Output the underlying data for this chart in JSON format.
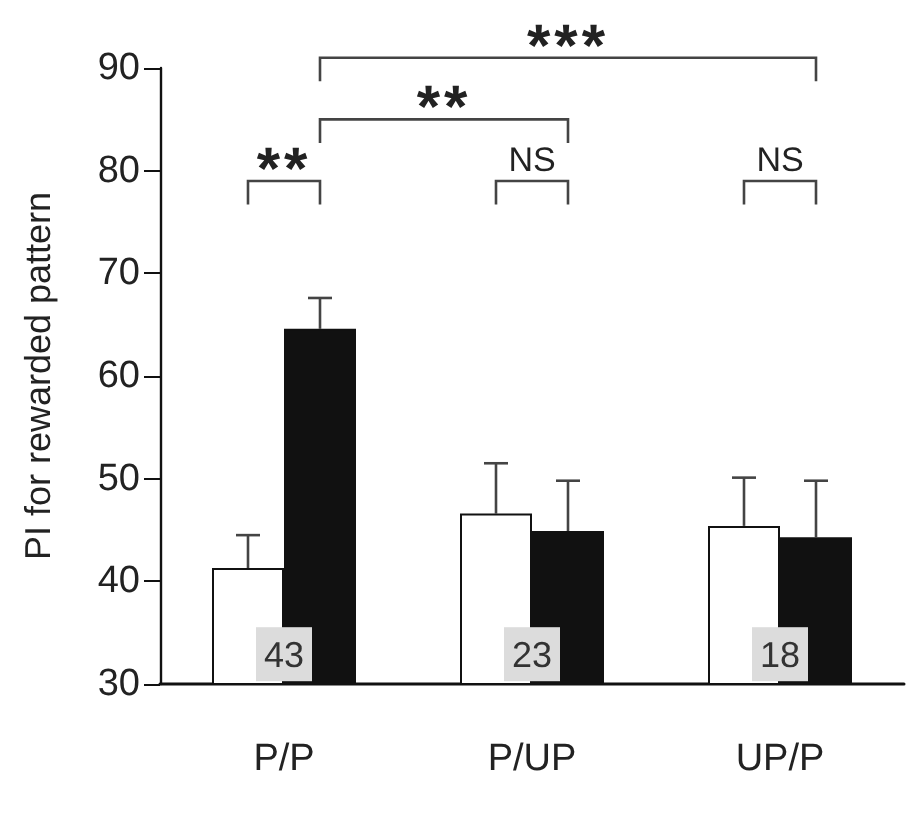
{
  "chart_data": {
    "type": "bar",
    "ylabel": "PI for rewarded pattern",
    "categories": [
      "P/P",
      "P/UP",
      "UP/P"
    ],
    "series": [
      {
        "color": "#ffffff",
        "values": [
          41.3,
          46.6,
          45.4
        ],
        "errors": [
          [
            41.3,
            44.5
          ],
          [
            46.6,
            51.5
          ],
          [
            45.4,
            50.1
          ]
        ]
      },
      {
        "color": "#111111",
        "values": [
          64.6,
          44.9,
          44.3
        ],
        "errors": [
          [
            64.6,
            67.6
          ],
          [
            44.9,
            49.8
          ],
          [
            44.3,
            49.8
          ]
        ]
      }
    ],
    "ylim": [
      30,
      90
    ],
    "yticks": [
      30,
      40,
      50,
      60,
      70,
      80,
      90
    ],
    "grid": false,
    "annotations": [
      "**",
      "NS",
      "NS",
      "**",
      "***",
      {
        "text": "43",
        "x": "P/P",
        "y": 33
      },
      {
        "text": "23",
        "x": "P/UP",
        "y": 33
      },
      {
        "text": "18",
        "x": "UP/P",
        "y": 33
      }
    ]
  }
}
